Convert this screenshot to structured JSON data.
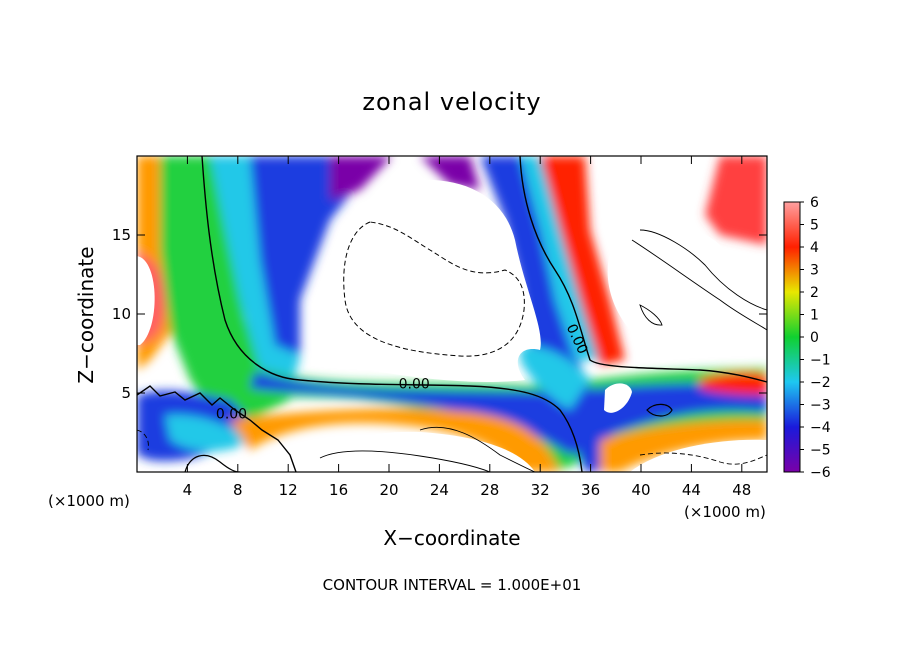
{
  "chart_data": {
    "type": "heatmap",
    "title": "zonal velocity",
    "xlabel": "X−coordinate",
    "ylabel": "Z−coordinate",
    "x_unit": "(×1000 m)",
    "y_unit": "(×1000 m)",
    "xlim": [
      0,
      50
    ],
    "ylim": [
      0,
      20
    ],
    "x_ticks": [
      4,
      8,
      12,
      16,
      20,
      24,
      28,
      32,
      36,
      40,
      44,
      48
    ],
    "y_ticks": [
      5,
      10,
      15
    ],
    "colorbar": {
      "min": -6,
      "max": 6,
      "ticks": [
        "6",
        "5",
        "4",
        "3",
        "2",
        "1",
        "0",
        "−1",
        "−2",
        "−3",
        "−4",
        "−5",
        "−6"
      ]
    },
    "contour_labels": [
      {
        "text": "0.00",
        "x": 22,
        "z": 5.3
      },
      {
        "text": "0.00",
        "x": 7.5,
        "z": 3.4
      },
      {
        "text": "0.00",
        "x": 34.6,
        "z": 8.3
      }
    ],
    "note": "CONTOUR INTERVAL = 1.000E+01",
    "colors": {
      "neg6": "#7a00a8",
      "neg4": "#1a1adb",
      "neg2": "#1ec8f0",
      "zero": "#10d030",
      "pos2": "#e8e800",
      "pos4": "#ff2000",
      "pos6": "#ffa0a0"
    }
  }
}
